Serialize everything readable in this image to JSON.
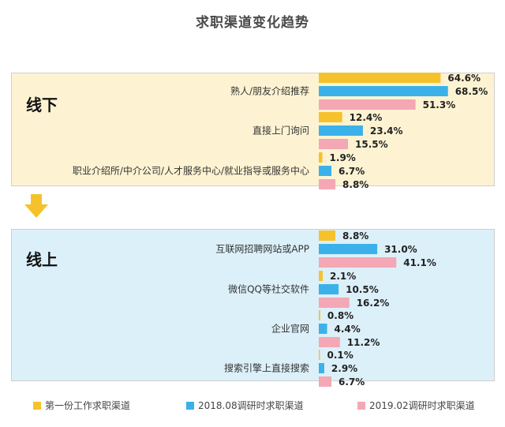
{
  "title": "求职渠道变化趋势",
  "sections": [
    {
      "label": "线下"
    },
    {
      "label": "线上"
    }
  ],
  "legend": [
    {
      "label": "第一份工作求职渠道",
      "color": "#f6c22b"
    },
    {
      "label": "2018.08调研时求职渠道",
      "color": "#3bb1ea"
    },
    {
      "label": "2019.02调研时求职渠道",
      "color": "#f4a7b4"
    }
  ],
  "chart_data": {
    "type": "bar",
    "orientation": "horizontal",
    "unit": "%",
    "categories": [
      "熟人/朋友介绍推荐",
      "直接上门询问",
      "职业介绍所/中介公司/人才服务中心/就业指导或服务中心",
      "互联网招聘网站或APP",
      "微信QQ等社交软件",
      "企业官网",
      "搜索引擎上直接搜索"
    ],
    "series": [
      {
        "name": "第一份工作求职渠道",
        "color": "#f6c22b",
        "values": [
          64.6,
          12.4,
          1.9,
          8.8,
          2.1,
          0.8,
          0.1
        ],
        "labels": [
          "64.6%",
          "12.4%",
          "1.9%",
          "8.8%",
          "2.1%",
          "0.8%",
          "0.1%"
        ]
      },
      {
        "name": "2018.08调研时求职渠道",
        "color": "#3bb1ea",
        "values": [
          68.5,
          23.4,
          6.7,
          31.0,
          10.5,
          4.4,
          2.9
        ],
        "labels": [
          "68.5%",
          "23.4%",
          "6.7%",
          "31.0%",
          "10.5%",
          "4.4%",
          "2.9%"
        ]
      },
      {
        "name": "2019.02调研时求职渠道",
        "color": "#f4a7b4",
        "values": [
          51.3,
          15.5,
          8.8,
          41.1,
          16.2,
          11.2,
          6.7
        ],
        "labels": [
          "51.3%",
          "15.5%",
          "8.8%",
          "41.1%",
          "16.2%",
          "11.2%",
          "6.7%"
        ]
      }
    ]
  }
}
